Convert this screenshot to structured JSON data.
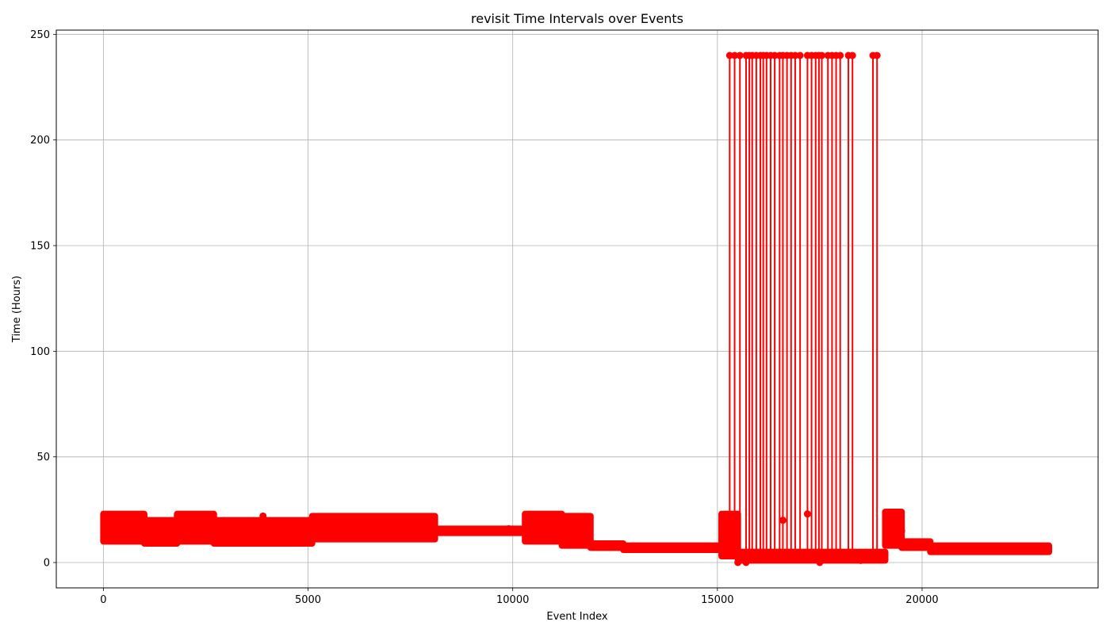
{
  "chart_data": {
    "type": "line",
    "title": "revisit Time Intervals over Events",
    "xlabel": "Event Index",
    "ylabel": "Time (Hours)",
    "xlim": [
      -1150,
      24300
    ],
    "ylim": [
      -12,
      252
    ],
    "xticks": [
      0,
      5000,
      10000,
      15000,
      20000
    ],
    "yticks": [
      0,
      50,
      100,
      150,
      200,
      250
    ],
    "grid": true,
    "series": [
      {
        "color": "#ff0000",
        "marker": "circle",
        "bands": [
          {
            "x": [
              0,
              1000
            ],
            "y": [
              10,
              23
            ]
          },
          {
            "x": [
              1000,
              1800
            ],
            "y": [
              9,
              20
            ]
          },
          {
            "x": [
              1800,
              2700
            ],
            "y": [
              10,
              23
            ]
          },
          {
            "x": [
              2700,
              5100
            ],
            "y": [
              9,
              20
            ]
          },
          {
            "x": [
              5100,
              8100
            ],
            "y": [
              11,
              22
            ]
          },
          {
            "x": [
              8100,
              10300
            ],
            "y": [
              14,
              16
            ]
          },
          {
            "x": [
              10300,
              11200
            ],
            "y": [
              10,
              23
            ]
          },
          {
            "x": [
              11200,
              11900
            ],
            "y": [
              8,
              22
            ]
          },
          {
            "x": [
              11900,
              12700
            ],
            "y": [
              7,
              9
            ]
          },
          {
            "x": [
              12700,
              15100
            ],
            "y": [
              6,
              8
            ]
          },
          {
            "x": [
              15100,
              15500
            ],
            "y": [
              3,
              23
            ]
          },
          {
            "x": [
              15500,
              19100
            ],
            "y": [
              1,
              5
            ]
          },
          {
            "x": [
              19100,
              19500
            ],
            "y": [
              8,
              24
            ]
          },
          {
            "x": [
              19500,
              20200
            ],
            "y": [
              7,
              10
            ]
          },
          {
            "x": [
              20200,
              23100
            ],
            "y": [
              5,
              8
            ]
          }
        ],
        "spikes": [
          {
            "x": 15300,
            "y": 240
          },
          {
            "x": 15420,
            "y": 240
          },
          {
            "x": 15550,
            "y": 240
          },
          {
            "x": 15700,
            "y": 240
          },
          {
            "x": 15780,
            "y": 240
          },
          {
            "x": 15850,
            "y": 240
          },
          {
            "x": 15950,
            "y": 240
          },
          {
            "x": 16050,
            "y": 240
          },
          {
            "x": 16120,
            "y": 240
          },
          {
            "x": 16200,
            "y": 240
          },
          {
            "x": 16300,
            "y": 240
          },
          {
            "x": 16400,
            "y": 240
          },
          {
            "x": 16520,
            "y": 240
          },
          {
            "x": 16600,
            "y": 240
          },
          {
            "x": 16700,
            "y": 240
          },
          {
            "x": 16800,
            "y": 240
          },
          {
            "x": 16900,
            "y": 240
          },
          {
            "x": 17020,
            "y": 240
          },
          {
            "x": 17200,
            "y": 240
          },
          {
            "x": 17300,
            "y": 240
          },
          {
            "x": 17400,
            "y": 240
          },
          {
            "x": 17480,
            "y": 240
          },
          {
            "x": 17550,
            "y": 240
          },
          {
            "x": 17700,
            "y": 240
          },
          {
            "x": 17800,
            "y": 240
          },
          {
            "x": 17900,
            "y": 240
          },
          {
            "x": 18000,
            "y": 240
          },
          {
            "x": 18200,
            "y": 240
          },
          {
            "x": 18300,
            "y": 240
          },
          {
            "x": 18800,
            "y": 240
          },
          {
            "x": 18900,
            "y": 240
          }
        ],
        "scatter_points": [
          {
            "x": 17200,
            "y": 23
          },
          {
            "x": 16600,
            "y": 20
          },
          {
            "x": 19500,
            "y": 15
          },
          {
            "x": 15500,
            "y": 0
          },
          {
            "x": 15700,
            "y": 0
          },
          {
            "x": 17500,
            "y": 0
          },
          {
            "x": 18500,
            "y": 1
          },
          {
            "x": 3900,
            "y": 22
          },
          {
            "x": 9900,
            "y": 16
          }
        ]
      }
    ]
  }
}
